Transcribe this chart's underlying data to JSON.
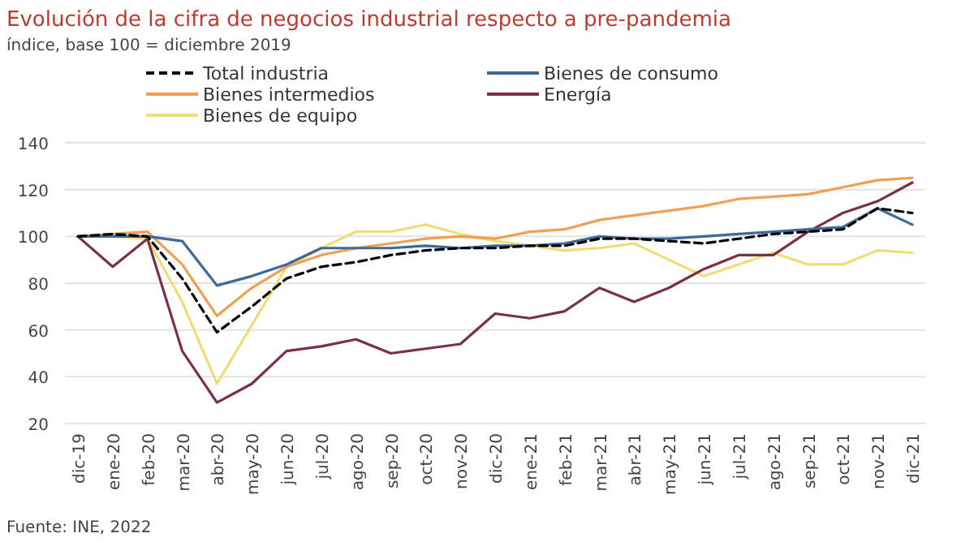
{
  "chart_data": {
    "type": "line",
    "title": "Evolución de la cifra de negocios industrial respecto a pre-pandemia",
    "subtitle": "índice, base 100 = diciembre 2019",
    "annotations": [
      "Fuente: INE, 2022"
    ],
    "categories": [
      "dic-19",
      "ene-20",
      "feb-20",
      "mar-20",
      "abr-20",
      "may-20",
      "jun-20",
      "jul-20",
      "ago-20",
      "sep-20",
      "oct-20",
      "nov-20",
      "dic-20",
      "ene-21",
      "feb-21",
      "mar-21",
      "abr-21",
      "may-21",
      "jun-21",
      "jul-21",
      "ago-21",
      "sep-21",
      "oct-21",
      "nov-21",
      "dic-21"
    ],
    "series": [
      {
        "name": "Total industria",
        "color": "#000000",
        "line_style": "dashed",
        "values": [
          100,
          101,
          100,
          82,
          59,
          70,
          82,
          87,
          89,
          92,
          94,
          95,
          95,
          96,
          96,
          99,
          99,
          98,
          97,
          99,
          101,
          102,
          103,
          112,
          110
        ]
      },
      {
        "name": "Bienes de consumo",
        "color": "#3d6a9a",
        "values": [
          100,
          100,
          100,
          98,
          79,
          83,
          88,
          95,
          95,
          95,
          96,
          95,
          96,
          96,
          97,
          100,
          99,
          99,
          100,
          101,
          102,
          103,
          104,
          112,
          105
        ]
      },
      {
        "name": "Bienes intermedios",
        "color": "#f0a050",
        "values": [
          100,
          101,
          102,
          88,
          66,
          78,
          87,
          92,
          95,
          97,
          99,
          100,
          99,
          102,
          103,
          107,
          109,
          111,
          113,
          116,
          117,
          118,
          121,
          124,
          125
        ]
      },
      {
        "name": "Energía",
        "color": "#7a3045",
        "values": [
          100,
          87,
          99,
          51,
          29,
          37,
          51,
          53,
          56,
          50,
          52,
          54,
          67,
          65,
          68,
          78,
          72,
          78,
          86,
          92,
          92,
          102,
          110,
          115,
          123
        ]
      },
      {
        "name": "Bienes de equipo",
        "color": "#f0dc78",
        "values": [
          100,
          100,
          99,
          72,
          37,
          62,
          87,
          95,
          102,
          102,
          105,
          101,
          98,
          96,
          94,
          95,
          97,
          90,
          83,
          88,
          93,
          88,
          88,
          94,
          93
        ]
      }
    ],
    "ylim": [
      20,
      140
    ],
    "yticks": [
      20,
      40,
      60,
      80,
      100,
      120,
      140
    ],
    "grid": "y",
    "legend": "top",
    "line_style": "solid",
    "marker": "none"
  }
}
